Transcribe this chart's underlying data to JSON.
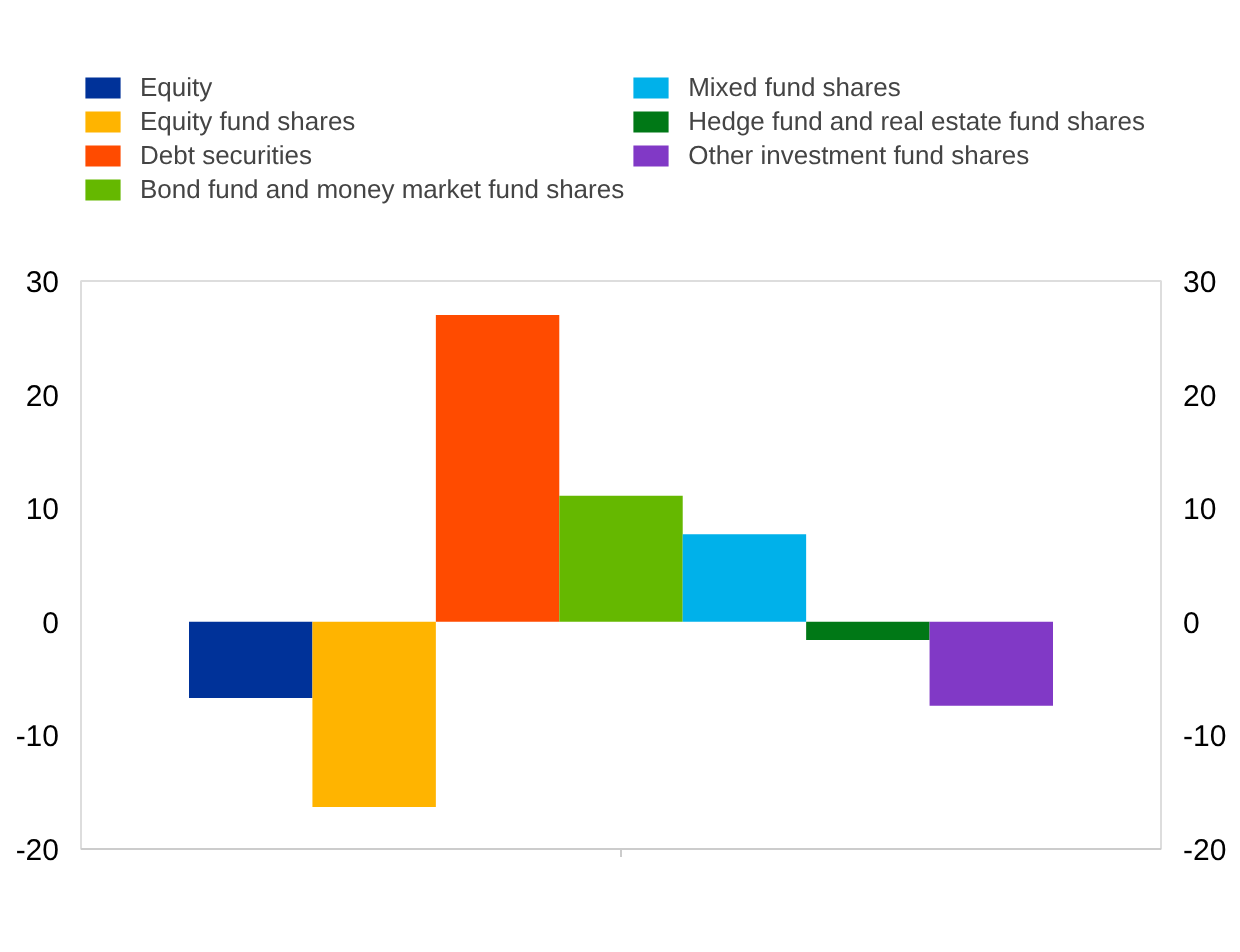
{
  "chart_data": {
    "type": "bar",
    "categories": [
      null
    ],
    "series": [
      {
        "name": "Equity",
        "color": "#003299",
        "values": [
          -6.7
        ]
      },
      {
        "name": "Equity fund shares",
        "color": "#ffb400",
        "values": [
          -16.3
        ]
      },
      {
        "name": "Debt securities",
        "color": "#ff4b00",
        "values": [
          27.0
        ]
      },
      {
        "name": "Bond fund and money market fund shares",
        "color": "#65b800",
        "values": [
          11.1
        ]
      },
      {
        "name": "Mixed fund shares",
        "color": "#00b1ea",
        "values": [
          7.7
        ]
      },
      {
        "name": "Hedge fund and real estate fund shares",
        "color": "#007816",
        "values": [
          -1.6
        ]
      },
      {
        "name": "Other investment fund shares",
        "color": "#8139c6",
        "values": [
          -7.4
        ]
      }
    ],
    "ylim": [
      -20,
      30
    ],
    "yticks": [
      -20,
      -10,
      0,
      10,
      20,
      30
    ],
    "y2lim": [
      -20,
      30
    ],
    "y2ticks": [
      -20,
      -10,
      0,
      10,
      20,
      30
    ],
    "legend": "top",
    "grid": false
  }
}
